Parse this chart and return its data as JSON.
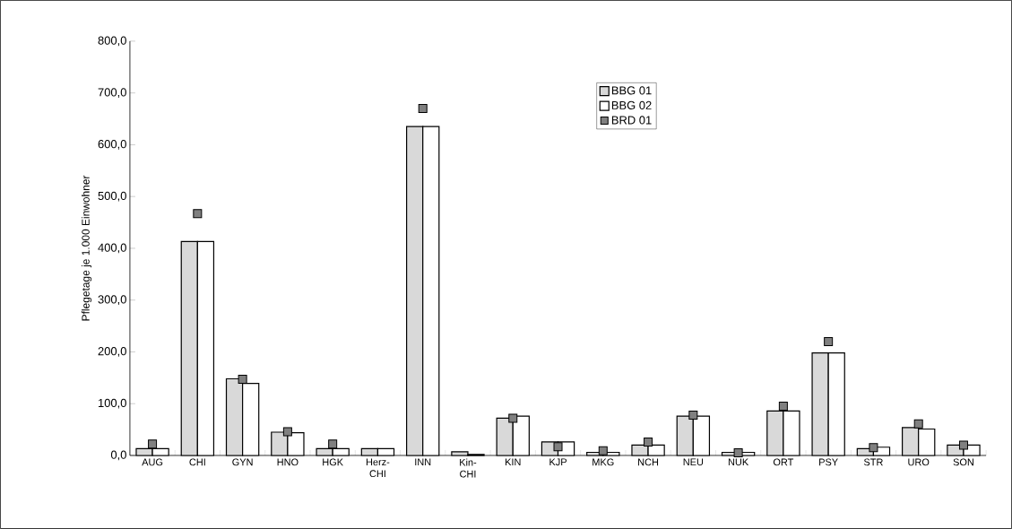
{
  "chart_data": {
    "type": "bar",
    "ylabel": "Pflegetage je 1.000 Einwohner",
    "categories": [
      "AUG",
      "CHI",
      "GYN",
      "HNO",
      "HGK",
      "Herz-\nCHI",
      "INN",
      "Kin-\nCHI",
      "KIN",
      "KJP",
      "MKG",
      "NCH",
      "NEU",
      "NUK",
      "ORT",
      "PSY",
      "STR",
      "URO",
      "SON"
    ],
    "series": [
      {
        "name": "BBG 01",
        "color": "#d9d9d9",
        "values": [
          13,
          413,
          148,
          45,
          13,
          13,
          635,
          7,
          72,
          26,
          6,
          20,
          76,
          6,
          86,
          198,
          13,
          54,
          20
        ]
      },
      {
        "name": "BBG 02",
        "color": "#ffffff",
        "values": [
          13,
          413,
          139,
          44,
          13,
          13,
          635,
          2,
          76,
          26,
          6,
          20,
          76,
          6,
          86,
          198,
          16,
          51,
          20
        ]
      },
      {
        "name": "BRD 01",
        "type": "scatter",
        "color": "#808080",
        "marker": "square",
        "values": [
          22,
          467,
          147,
          46,
          22,
          null,
          670,
          null,
          72,
          17,
          9,
          26,
          78,
          5,
          95,
          220,
          15,
          61,
          20
        ]
      }
    ],
    "ylim": [
      0,
      800
    ],
    "yticks": [
      {
        "value": 0,
        "label": "0,0"
      },
      {
        "value": 100,
        "label": "100,0"
      },
      {
        "value": 200,
        "label": "200,0"
      },
      {
        "value": 300,
        "label": "300,0"
      },
      {
        "value": 400,
        "label": "400,0"
      },
      {
        "value": 500,
        "label": "500,0"
      },
      {
        "value": 600,
        "label": "600,0"
      },
      {
        "value": 700,
        "label": "700,0"
      },
      {
        "value": 800,
        "label": "800,0"
      }
    ],
    "grid": false,
    "legend": "top"
  }
}
